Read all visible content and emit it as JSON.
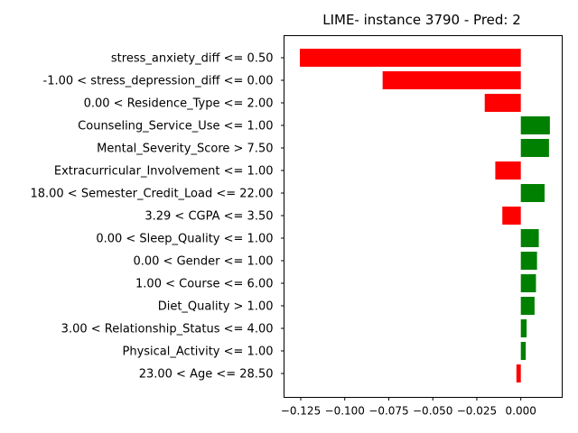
{
  "chart_data": {
    "type": "bar",
    "orientation": "horizontal",
    "title": "LIME- instance 3790 - Pred: 2",
    "xlabel": "",
    "ylabel": "",
    "xlim": [
      -0.1345,
      0.0235
    ],
    "grid": false,
    "colors": {
      "positive": "#008000",
      "negative": "#ff0000"
    },
    "xticks": [
      -0.125,
      -0.1,
      -0.075,
      -0.05,
      -0.025,
      0.0
    ],
    "xtick_labels": [
      "−0.125",
      "−0.100",
      "−0.075",
      "−0.050",
      "−0.025",
      "0.000"
    ],
    "categories": [
      "stress_anxiety_diff <= 0.50",
      "-1.00 < stress_depression_diff <= 0.00",
      "0.00 < Residence_Type <= 2.00",
      "Counseling_Service_Use <= 1.00",
      "Mental_Severity_Score > 7.50",
      "Extracurricular_Involvement <= 1.00",
      "18.00 < Semester_Credit_Load <= 22.00",
      "3.29 < CGPA <= 3.50",
      "0.00 < Sleep_Quality <= 1.00",
      "0.00 < Gender <= 1.00",
      "1.00 < Course <= 6.00",
      "Diet_Quality > 1.00",
      "3.00 < Relationship_Status <= 4.00",
      "Physical_Activity <= 1.00",
      "23.00 < Age <= 28.50"
    ],
    "values": [
      -0.1255,
      -0.0785,
      -0.0205,
      0.0165,
      0.016,
      -0.0145,
      0.0135,
      -0.0105,
      0.0102,
      0.0092,
      0.0086,
      0.0078,
      0.0033,
      0.0028,
      -0.0025
    ]
  }
}
